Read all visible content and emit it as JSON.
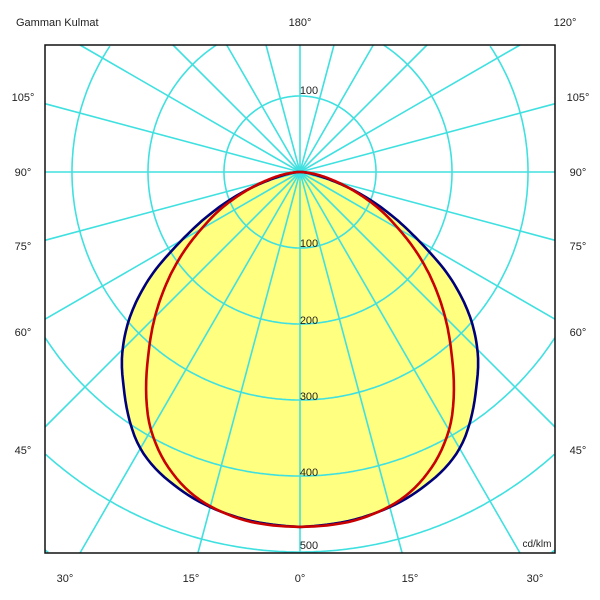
{
  "chart_data": {
    "type": "polar",
    "title": "Gamman Kulmat",
    "unit_label": "cd/klm",
    "top_labels": [
      "180°",
      "120°"
    ],
    "left_angle_labels": [
      "105°",
      "90°",
      "75°",
      "60°",
      "45°"
    ],
    "right_angle_labels": [
      "105°",
      "90°",
      "75°",
      "60°",
      "45°"
    ],
    "bottom_angle_labels": [
      "30°",
      "15°",
      "0°",
      "15°",
      "30°"
    ],
    "radial_tick_labels": [
      "100",
      "100",
      "200",
      "300",
      "400",
      "500"
    ],
    "radial_max": 500,
    "radial_step": 100,
    "angular_grid_step_deg": 15,
    "grid": true,
    "colors": {
      "grid": "#40e0e0",
      "fill": "#ffff80",
      "series_blue": "#00007a",
      "series_red": "#c80000"
    },
    "gamma_deg": [
      0,
      10,
      20,
      30,
      40,
      45,
      50,
      55,
      60,
      65,
      70,
      75,
      80,
      85,
      90
    ],
    "series": [
      {
        "color": "#00007a",
        "values": [
          467,
          462,
          448,
          420,
          362,
          330,
          290,
          240,
          180,
          130,
          85,
          45,
          20,
          8,
          0
        ]
      },
      {
        "color": "#c80000",
        "values": [
          467,
          463,
          442,
          392,
          310,
          270,
          230,
          190,
          150,
          115,
          80,
          50,
          28,
          10,
          0
        ]
      }
    ]
  }
}
